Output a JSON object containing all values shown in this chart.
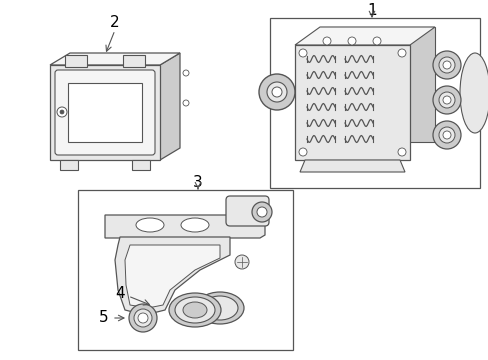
{
  "bg_color": "#ffffff",
  "line_color": "#555555",
  "label_color": "#000000",
  "fig_width": 4.89,
  "fig_height": 3.6,
  "dpi": 100,
  "gray_fill": "#e8e8e8",
  "gray_dark": "#cccccc",
  "gray_light": "#f5f5f5"
}
